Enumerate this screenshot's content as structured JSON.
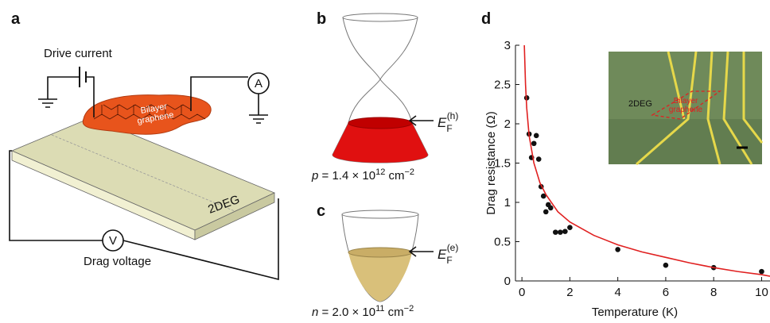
{
  "panels": {
    "a": {
      "label": "a",
      "drive": "Drive current",
      "flake": [
        "Bilayer",
        "graphene"
      ],
      "slab": "2DEG",
      "drag": "Drag voltage",
      "ammeter": "A",
      "voltmeter": "V"
    },
    "b": {
      "label": "b",
      "fermi": [
        "E",
        "F",
        "(h)"
      ],
      "density": [
        "p",
        " = 1.4 × 10",
        "12",
        " cm",
        "−2"
      ]
    },
    "c": {
      "label": "c",
      "fermi": [
        "E",
        "F",
        "(e)"
      ],
      "density": [
        "n",
        " = 2.0 × 10",
        "11",
        " cm",
        "−2"
      ]
    },
    "d": {
      "label": "d"
    }
  },
  "chart_data": {
    "type": "scatter",
    "xlabel": "Temperature (K)",
    "ylabel": "Drag resistance (Ω)",
    "xlim": [
      -0.27,
      10.35
    ],
    "xticks": [
      0,
      2,
      4,
      6,
      8,
      10
    ],
    "ylim": [
      0,
      3
    ],
    "yticks": [
      0,
      0.5,
      1,
      1.5,
      2,
      2.5,
      3
    ],
    "inset_labels": [
      "2DEG",
      "Bilayer",
      "graphene"
    ],
    "series": [
      {
        "type": "scatter",
        "color": "#111111",
        "x": [
          0.2,
          0.3,
          0.4,
          0.5,
          0.6,
          0.7,
          0.8,
          0.9,
          1.0,
          1.1,
          1.2,
          1.4,
          1.6,
          1.8,
          2.0,
          4.0,
          6.0,
          8.0,
          10.0
        ],
        "values": [
          2.33,
          1.87,
          1.57,
          1.75,
          1.85,
          1.55,
          1.2,
          1.08,
          0.88,
          0.97,
          0.93,
          0.62,
          0.62,
          0.63,
          0.68,
          0.4,
          0.2,
          0.17,
          0.12
        ]
      },
      {
        "type": "line",
        "color": "#e02020",
        "x": [
          0.1,
          0.15,
          0.2,
          0.3,
          0.5,
          0.75,
          1,
          1.5,
          2,
          3,
          4,
          5,
          6,
          7,
          8,
          9,
          10,
          10.35
        ],
        "values": [
          3.0,
          2.5,
          2.2,
          1.85,
          1.5,
          1.25,
          1.1,
          0.88,
          0.75,
          0.58,
          0.46,
          0.37,
          0.3,
          0.23,
          0.17,
          0.12,
          0.08,
          0.06
        ]
      }
    ]
  }
}
